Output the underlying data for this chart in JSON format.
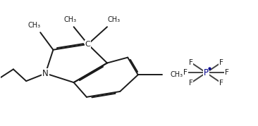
{
  "bg_color": "#ffffff",
  "line_color": "#1a1a1a",
  "bond_lw": 1.4,
  "font_size": 7.5,
  "fig_width": 3.66,
  "fig_height": 1.79,
  "dpi": 100,
  "xlim": [
    0.0,
    1.0
  ],
  "ylim": [
    0.05,
    0.95
  ],
  "label_C": "C",
  "label_N": "N",
  "label_P": "P",
  "label_F": "F",
  "P_color": "#00008B",
  "methyl_labels": [
    "CH₃",
    "CH₃",
    "CH₃",
    "CH₃"
  ]
}
